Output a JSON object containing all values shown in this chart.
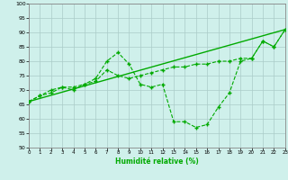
{
  "xlabel": "Humidité relative (%)",
  "bg_color": "#cff0eb",
  "grid_color": "#aaccc8",
  "line_color": "#00aa00",
  "ylim": [
    50,
    100
  ],
  "xlim": [
    0,
    23
  ],
  "yticks": [
    50,
    55,
    60,
    65,
    70,
    75,
    80,
    85,
    90,
    95,
    100
  ],
  "xticks": [
    0,
    1,
    2,
    3,
    4,
    5,
    6,
    7,
    8,
    9,
    10,
    11,
    12,
    13,
    14,
    15,
    16,
    17,
    18,
    19,
    20,
    21,
    22,
    23
  ],
  "line1_x": [
    0,
    1,
    2,
    3,
    4,
    5,
    6,
    7,
    8,
    9,
    10,
    11,
    12,
    13,
    14,
    15,
    16,
    17,
    18,
    19,
    20,
    21,
    22,
    23
  ],
  "line1_y": [
    66,
    68,
    69,
    71,
    71,
    72,
    73,
    77,
    75,
    74,
    75,
    76,
    77,
    78,
    78,
    79,
    79,
    80,
    80,
    81,
    81,
    87,
    85,
    91
  ],
  "line2_x": [
    0,
    1,
    2,
    3,
    4,
    5,
    6,
    7,
    8,
    9,
    10,
    11,
    12,
    13,
    14,
    15,
    16,
    17,
    18,
    19,
    20,
    21,
    22,
    23
  ],
  "line2_y": [
    66,
    68,
    70,
    71,
    70,
    72,
    74,
    80,
    83,
    79,
    72,
    71,
    72,
    59,
    59,
    57,
    58,
    64,
    69,
    80,
    81,
    87,
    85,
    91
  ],
  "line3_x": [
    0,
    23
  ],
  "line3_y": [
    66,
    91
  ]
}
